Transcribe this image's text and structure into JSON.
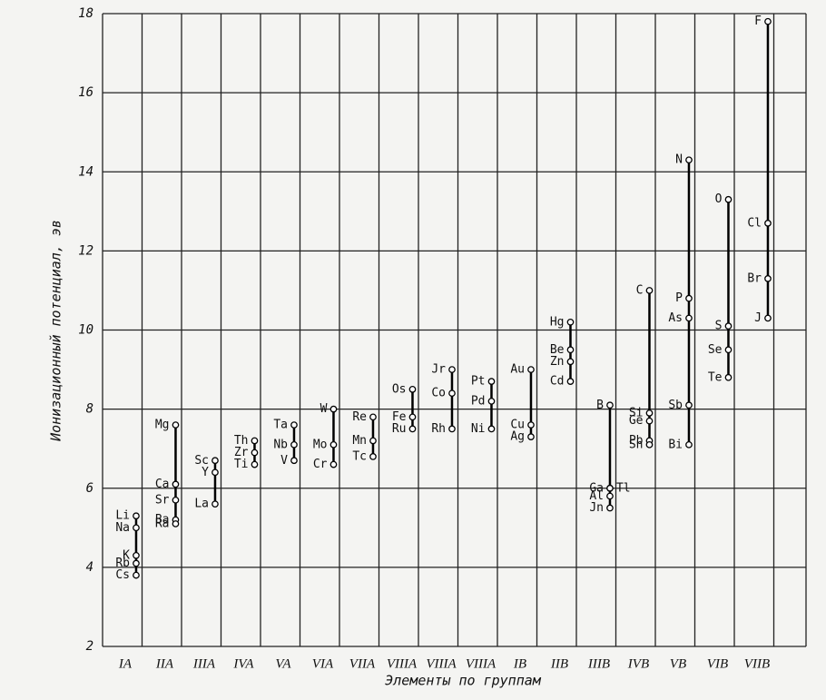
{
  "chart_data": {
    "type": "scatter",
    "ylabel": "Ионизационный потенциал, эв",
    "xlabel": "Элементы по группам",
    "ylim": [
      2,
      18
    ],
    "yticks": [
      2,
      4,
      6,
      8,
      10,
      12,
      14,
      16,
      18
    ],
    "categories": [
      "IA",
      "IIA",
      "IIIA",
      "IVA",
      "VA",
      "VIA",
      "VIIA",
      "VIIIA",
      "VIIIA",
      "VIIIA",
      "IB",
      "IIB",
      "IIIB",
      "IVB",
      "VB",
      "VIB",
      "VIIB"
    ],
    "groups": [
      {
        "elements": [
          "Li",
          "Na",
          "K",
          "Rb",
          "Cs"
        ],
        "values": [
          5.3,
          5.0,
          4.3,
          4.1,
          3.8
        ]
      },
      {
        "elements": [
          "Mg",
          "Ca",
          "Sr",
          "Ba",
          "Ra"
        ],
        "values": [
          7.6,
          6.1,
          5.7,
          5.2,
          5.1
        ]
      },
      {
        "elements": [
          "Sc",
          "Y",
          "La"
        ],
        "values": [
          6.7,
          6.4,
          5.6
        ]
      },
      {
        "elements": [
          "Th",
          "Zr",
          "Ti"
        ],
        "values": [
          7.2,
          6.9,
          6.6
        ]
      },
      {
        "elements": [
          "Ta",
          "Nb",
          "V"
        ],
        "values": [
          7.6,
          7.1,
          6.7
        ]
      },
      {
        "elements": [
          "W",
          "Mo",
          "Cr"
        ],
        "values": [
          8.0,
          7.1,
          6.6
        ]
      },
      {
        "elements": [
          "Re",
          "Mn",
          "Tc"
        ],
        "values": [
          7.8,
          7.2,
          6.8
        ]
      },
      {
        "elements": [
          "Os",
          "Fe",
          "Ru"
        ],
        "values": [
          8.5,
          7.8,
          7.5
        ]
      },
      {
        "elements": [
          "Jr",
          "Co",
          "Rh"
        ],
        "values": [
          9.0,
          8.4,
          7.5
        ]
      },
      {
        "elements": [
          "Pt",
          "Pd",
          "Ni"
        ],
        "values": [
          8.7,
          8.2,
          7.5
        ]
      },
      {
        "elements": [
          "Au",
          "Cu",
          "Ag"
        ],
        "values": [
          9.0,
          7.6,
          7.3
        ]
      },
      {
        "elements": [
          "Hg",
          "Be",
          "Zn",
          "Cd"
        ],
        "values": [
          10.2,
          9.5,
          9.2,
          8.7
        ]
      },
      {
        "elements": [
          "B",
          "Ga",
          "Tl",
          "Al",
          "Jn"
        ],
        "values": [
          8.1,
          6.0,
          6.0,
          5.8,
          5.5
        ]
      },
      {
        "elements": [
          "C",
          "Si",
          "Ge",
          "Pb",
          "Sn"
        ],
        "values": [
          11.0,
          7.9,
          7.7,
          7.2,
          7.1
        ]
      },
      {
        "elements": [
          "N",
          "P",
          "As",
          "Sb",
          "Bi"
        ],
        "values": [
          14.3,
          10.8,
          10.3,
          8.1,
          7.1
        ]
      },
      {
        "elements": [
          "O",
          "S",
          "Se",
          "Te"
        ],
        "values": [
          13.3,
          10.1,
          9.5,
          8.8
        ]
      },
      {
        "elements": [
          "F",
          "Cl",
          "Br",
          "J"
        ],
        "values": [
          17.8,
          12.7,
          11.3,
          10.3
        ]
      }
    ],
    "grid": true
  }
}
